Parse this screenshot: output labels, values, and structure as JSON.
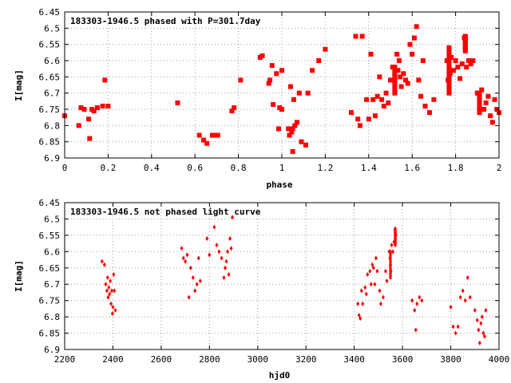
{
  "colors": {
    "marker": "#ff0000",
    "axis": "#000000",
    "grid": "#a0a0a0",
    "background": "#ffffff"
  },
  "chart_data": [
    {
      "type": "scatter",
      "title": "183303-1946.5 phased with P=301.7day",
      "xlabel": "phase",
      "ylabel": "I[mag]",
      "xlim": [
        0,
        2
      ],
      "ylim": [
        6.45,
        6.9
      ],
      "y_inverted": true,
      "grid": true,
      "marker": "filled-square",
      "xticks": [
        "0",
        "0.2",
        "0.4",
        "0.6",
        "0.8",
        "1",
        "1.2",
        "1.4",
        "1.6",
        "1.8",
        "2"
      ],
      "yticks": [
        "6.45",
        "6.5",
        "6.55",
        "6.6",
        "6.65",
        "6.7",
        "6.75",
        "6.8",
        "6.85",
        "6.9"
      ],
      "points": [
        [
          0.0,
          6.77
        ],
        [
          0.065,
          6.8
        ],
        [
          0.075,
          6.745
        ],
        [
          0.09,
          6.75
        ],
        [
          0.11,
          6.78
        ],
        [
          0.115,
          6.84
        ],
        [
          0.125,
          6.75
        ],
        [
          0.135,
          6.755
        ],
        [
          0.15,
          6.745
        ],
        [
          0.175,
          6.74
        ],
        [
          0.185,
          6.66
        ],
        [
          0.2,
          6.74
        ],
        [
          0.52,
          6.73
        ],
        [
          0.62,
          6.83
        ],
        [
          0.64,
          6.845
        ],
        [
          0.655,
          6.855
        ],
        [
          0.68,
          6.83
        ],
        [
          0.69,
          6.83
        ],
        [
          0.705,
          6.83
        ],
        [
          0.77,
          6.755
        ],
        [
          0.78,
          6.745
        ],
        [
          0.81,
          6.66
        ],
        [
          0.9,
          6.59
        ],
        [
          0.91,
          6.585
        ],
        [
          0.94,
          6.67
        ],
        [
          0.945,
          6.66
        ],
        [
          0.955,
          6.615
        ],
        [
          0.96,
          6.735
        ],
        [
          0.975,
          6.64
        ],
        [
          0.985,
          6.81
        ],
        [
          0.99,
          6.745
        ],
        [
          1.0,
          6.75
        ],
        [
          1.0,
          6.63
        ],
        [
          1.03,
          6.81
        ],
        [
          1.035,
          6.83
        ],
        [
          1.04,
          6.68
        ],
        [
          1.045,
          6.82
        ],
        [
          1.05,
          6.81
        ],
        [
          1.05,
          6.88
        ],
        [
          1.055,
          6.72
        ],
        [
          1.06,
          6.8
        ],
        [
          1.07,
          6.79
        ],
        [
          1.08,
          6.7
        ],
        [
          1.09,
          6.85
        ],
        [
          1.11,
          6.86
        ],
        [
          1.12,
          6.7
        ],
        [
          1.14,
          6.63
        ],
        [
          1.17,
          6.6
        ],
        [
          1.2,
          6.565
        ],
        [
          1.32,
          6.76
        ],
        [
          1.34,
          6.525
        ],
        [
          1.35,
          6.78
        ],
        [
          1.36,
          6.8
        ],
        [
          1.37,
          6.525
        ],
        [
          1.39,
          6.72
        ],
        [
          1.4,
          6.78
        ],
        [
          1.41,
          6.58
        ],
        [
          1.42,
          6.72
        ],
        [
          1.43,
          6.77
        ],
        [
          1.44,
          6.71
        ],
        [
          1.45,
          6.65
        ],
        [
          1.46,
          6.72
        ],
        [
          1.47,
          6.74
        ],
        [
          1.48,
          6.7
        ],
        [
          1.49,
          6.73
        ],
        [
          1.5,
          6.66
        ],
        [
          1.51,
          6.62
        ],
        [
          1.52,
          6.64
        ],
        [
          1.52,
          6.69
        ],
        [
          1.53,
          6.58
        ],
        [
          1.535,
          6.63
        ],
        [
          1.54,
          6.6
        ],
        [
          1.545,
          6.65
        ],
        [
          1.55,
          6.68
        ],
        [
          1.56,
          6.64
        ],
        [
          1.57,
          6.66
        ],
        [
          1.58,
          6.67
        ],
        [
          1.59,
          6.55
        ],
        [
          1.6,
          6.58
        ],
        [
          1.61,
          6.53
        ],
        [
          1.62,
          6.495
        ],
        [
          1.63,
          6.66
        ],
        [
          1.64,
          6.71
        ],
        [
          1.65,
          6.6
        ],
        [
          1.66,
          6.74
        ],
        [
          1.68,
          6.76
        ],
        [
          1.7,
          6.72
        ],
        [
          1.76,
          6.6
        ],
        [
          1.765,
          6.66
        ],
        [
          1.77,
          6.62
        ],
        [
          1.775,
          6.64
        ],
        [
          1.78,
          6.59
        ],
        [
          1.79,
          6.63
        ],
        [
          1.8,
          6.6
        ],
        [
          1.81,
          6.62
        ],
        [
          1.82,
          6.655
        ],
        [
          1.83,
          6.61
        ],
        [
          1.84,
          6.53
        ],
        [
          1.845,
          6.56
        ],
        [
          1.85,
          6.62
        ],
        [
          1.86,
          6.6
        ],
        [
          1.87,
          6.61
        ],
        [
          1.88,
          6.6
        ],
        [
          1.9,
          6.7
        ],
        [
          1.91,
          6.72
        ],
        [
          1.92,
          6.69
        ],
        [
          1.93,
          6.75
        ],
        [
          1.94,
          6.73
        ],
        [
          1.95,
          6.71
        ],
        [
          1.96,
          6.77
        ],
        [
          1.97,
          6.79
        ],
        [
          1.98,
          6.72
        ],
        [
          1.99,
          6.75
        ],
        [
          2.0,
          6.76
        ]
      ],
      "point_groups": [
        {
          "x": 1.52,
          "y": [
            6.62,
            6.7
          ]
        },
        {
          "x": 1.77,
          "y": [
            6.56,
            6.7
          ]
        },
        {
          "x": 1.845,
          "y": [
            6.525,
            6.57
          ]
        },
        {
          "x": 1.91,
          "y": [
            6.7,
            6.76
          ]
        }
      ]
    },
    {
      "type": "scatter",
      "title": "183303-1946.5 not phased light curve",
      "xlabel": "hjd0",
      "ylabel": "I[mag]",
      "xlim": [
        2200,
        4000
      ],
      "ylim": [
        6.45,
        6.9
      ],
      "y_inverted": true,
      "grid": true,
      "marker": "filled-diamond",
      "xticks": [
        "2200",
        "2400",
        "2600",
        "2800",
        "3000",
        "3200",
        "3400",
        "3600",
        "3800",
        "4000"
      ],
      "yticks": [
        "6.45",
        "6.5",
        "6.55",
        "6.6",
        "6.65",
        "6.7",
        "6.75",
        "6.8",
        "6.85",
        "6.9"
      ],
      "points": [
        [
          2355,
          6.63
        ],
        [
          2365,
          6.64
        ],
        [
          2370,
          6.7
        ],
        [
          2375,
          6.72
        ],
        [
          2378,
          6.68
        ],
        [
          2380,
          6.74
        ],
        [
          2383,
          6.71
        ],
        [
          2386,
          6.73
        ],
        [
          2389,
          6.69
        ],
        [
          2392,
          6.76
        ],
        [
          2395,
          6.72
        ],
        [
          2398,
          6.79
        ],
        [
          2400,
          6.77
        ],
        [
          2403,
          6.67
        ],
        [
          2406,
          6.72
        ],
        [
          2410,
          6.78
        ],
        [
          2685,
          6.59
        ],
        [
          2692,
          6.62
        ],
        [
          2700,
          6.63
        ],
        [
          2708,
          6.61
        ],
        [
          2715,
          6.74
        ],
        [
          2722,
          6.65
        ],
        [
          2732,
          6.68
        ],
        [
          2740,
          6.72
        ],
        [
          2748,
          6.7
        ],
        [
          2755,
          6.62
        ],
        [
          2762,
          6.69
        ],
        [
          2790,
          6.56
        ],
        [
          2800,
          6.61
        ],
        [
          2820,
          6.525
        ],
        [
          2830,
          6.58
        ],
        [
          2840,
          6.6
        ],
        [
          2850,
          6.62
        ],
        [
          2860,
          6.68
        ],
        [
          2865,
          6.65
        ],
        [
          2870,
          6.63
        ],
        [
          2875,
          6.6
        ],
        [
          2880,
          6.67
        ],
        [
          2885,
          6.56
        ],
        [
          2890,
          6.59
        ],
        [
          2895,
          6.495
        ],
        [
          3415,
          6.76
        ],
        [
          3420,
          6.795
        ],
        [
          3425,
          6.805
        ],
        [
          3430,
          6.72
        ],
        [
          3435,
          6.76
        ],
        [
          3445,
          6.71
        ],
        [
          3450,
          6.73
        ],
        [
          3455,
          6.67
        ],
        [
          3465,
          6.66
        ],
        [
          3470,
          6.7
        ],
        [
          3475,
          6.64
        ],
        [
          3480,
          6.65
        ],
        [
          3485,
          6.7
        ],
        [
          3490,
          6.62
        ],
        [
          3495,
          6.66
        ],
        [
          3505,
          6.72
        ],
        [
          3510,
          6.76
        ],
        [
          3520,
          6.74
        ],
        [
          3530,
          6.66
        ],
        [
          3535,
          6.69
        ],
        [
          3545,
          6.6
        ],
        [
          3548,
          6.62
        ],
        [
          3550,
          6.64
        ],
        [
          3552,
          6.66
        ],
        [
          3555,
          6.58
        ],
        [
          3560,
          6.6
        ],
        [
          3565,
          6.57
        ],
        [
          3570,
          6.53
        ],
        [
          3572,
          6.55
        ],
        [
          3640,
          6.75
        ],
        [
          3650,
          6.78
        ],
        [
          3655,
          6.84
        ],
        [
          3660,
          6.76
        ],
        [
          3670,
          6.74
        ],
        [
          3680,
          6.75
        ],
        [
          3800,
          6.77
        ],
        [
          3810,
          6.83
        ],
        [
          3820,
          6.85
        ],
        [
          3830,
          6.83
        ],
        [
          3840,
          6.74
        ],
        [
          3850,
          6.72
        ],
        [
          3860,
          6.75
        ],
        [
          3870,
          6.68
        ],
        [
          3880,
          6.74
        ],
        [
          3900,
          6.78
        ],
        [
          3910,
          6.81
        ],
        [
          3915,
          6.84
        ],
        [
          3920,
          6.88
        ],
        [
          3925,
          6.82
        ],
        [
          3930,
          6.8
        ],
        [
          3935,
          6.85
        ],
        [
          3940,
          6.86
        ],
        [
          3945,
          6.78
        ]
      ],
      "point_groups": [
        {
          "x": 3550,
          "y": [
            6.6,
            6.68
          ]
        },
        {
          "x": 3570,
          "y": [
            6.53,
            6.58
          ]
        }
      ]
    }
  ]
}
